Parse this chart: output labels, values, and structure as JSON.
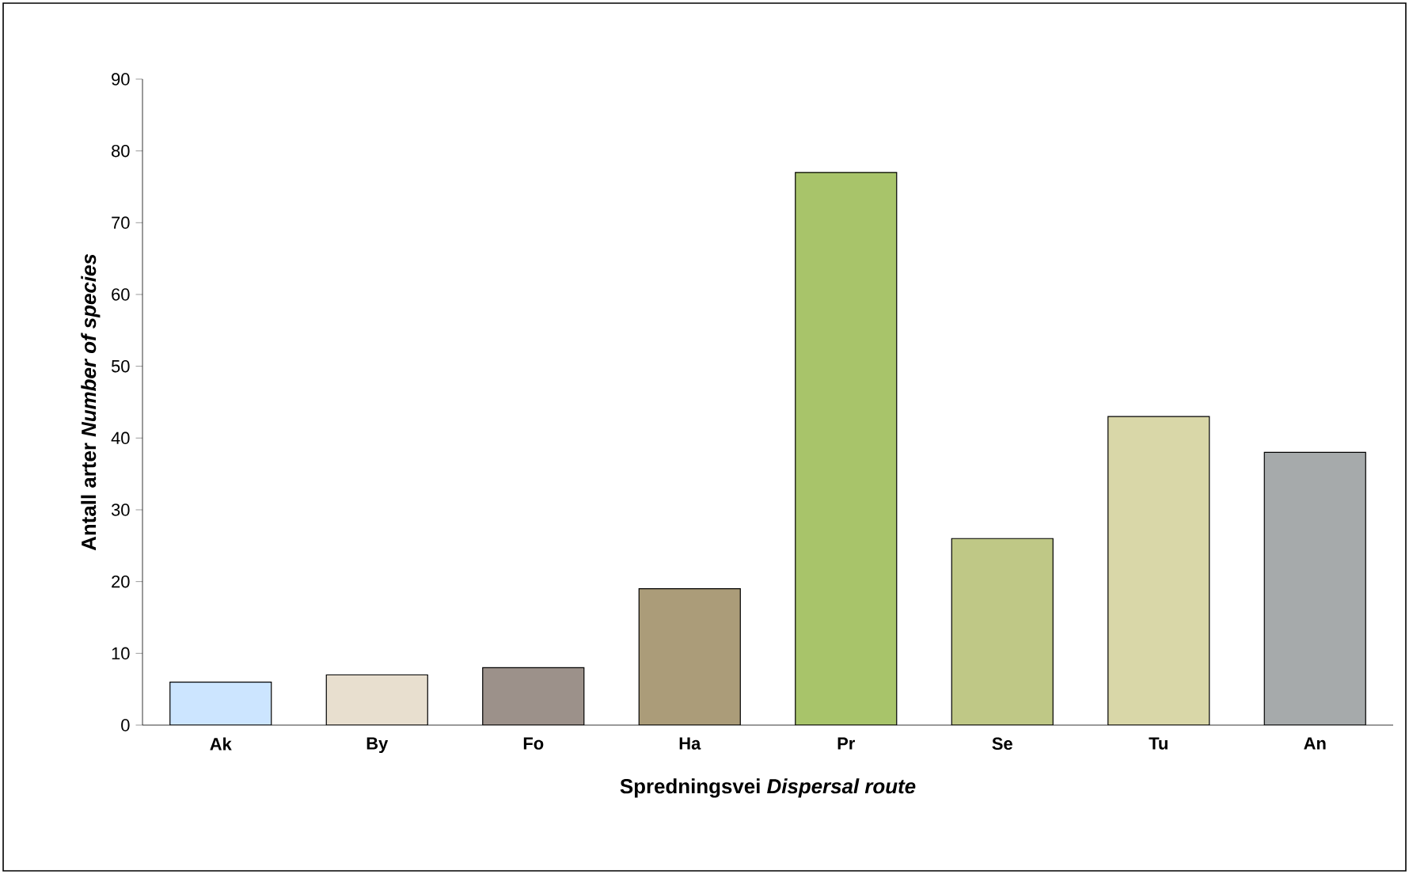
{
  "chart_data": {
    "type": "bar",
    "xlabel": "Spredningsvei  *Dispersal route*",
    "ylabel": "Antall arter  *Number of species*",
    "categories": [
      "Ak",
      "By",
      "Fo",
      "Ha",
      "Pr",
      "Se",
      "Tu",
      "An"
    ],
    "values": [
      6,
      7,
      8,
      19,
      77,
      26,
      43,
      38
    ],
    "colors": [
      "#cce5ff",
      "#e8dfcf",
      "#9c918a",
      "#ab9c79",
      "#a8c46a",
      "#bfc886",
      "#d9d7a8",
      "#a6aaab"
    ],
    "ylim": [
      0,
      90
    ],
    "yticks": [
      0,
      10,
      20,
      30,
      40,
      50,
      60,
      70,
      80,
      90
    ],
    "grid": false
  }
}
